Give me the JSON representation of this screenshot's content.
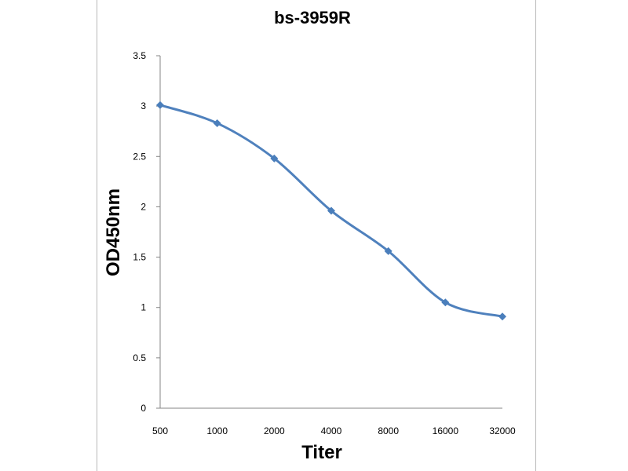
{
  "chart_data": {
    "type": "line",
    "title": "bs-3959R",
    "xlabel": "Titer",
    "ylabel": "OD450nm",
    "categories": [
      "500",
      "1000",
      "2000",
      "4000",
      "8000",
      "16000",
      "32000"
    ],
    "series": [
      {
        "values": [
          3.01,
          2.83,
          2.48,
          1.96,
          1.56,
          1.05,
          0.91
        ]
      }
    ],
    "ylim": [
      0,
      3.5
    ],
    "yticks": [
      "0",
      "0.5",
      "1",
      "1.5",
      "2",
      "2.5",
      "3",
      "3.5"
    ],
    "grid": false,
    "legend": "none",
    "colors": {
      "line": "#4f81bd",
      "marker": "#4a7ebb",
      "axis": "#868686"
    }
  }
}
